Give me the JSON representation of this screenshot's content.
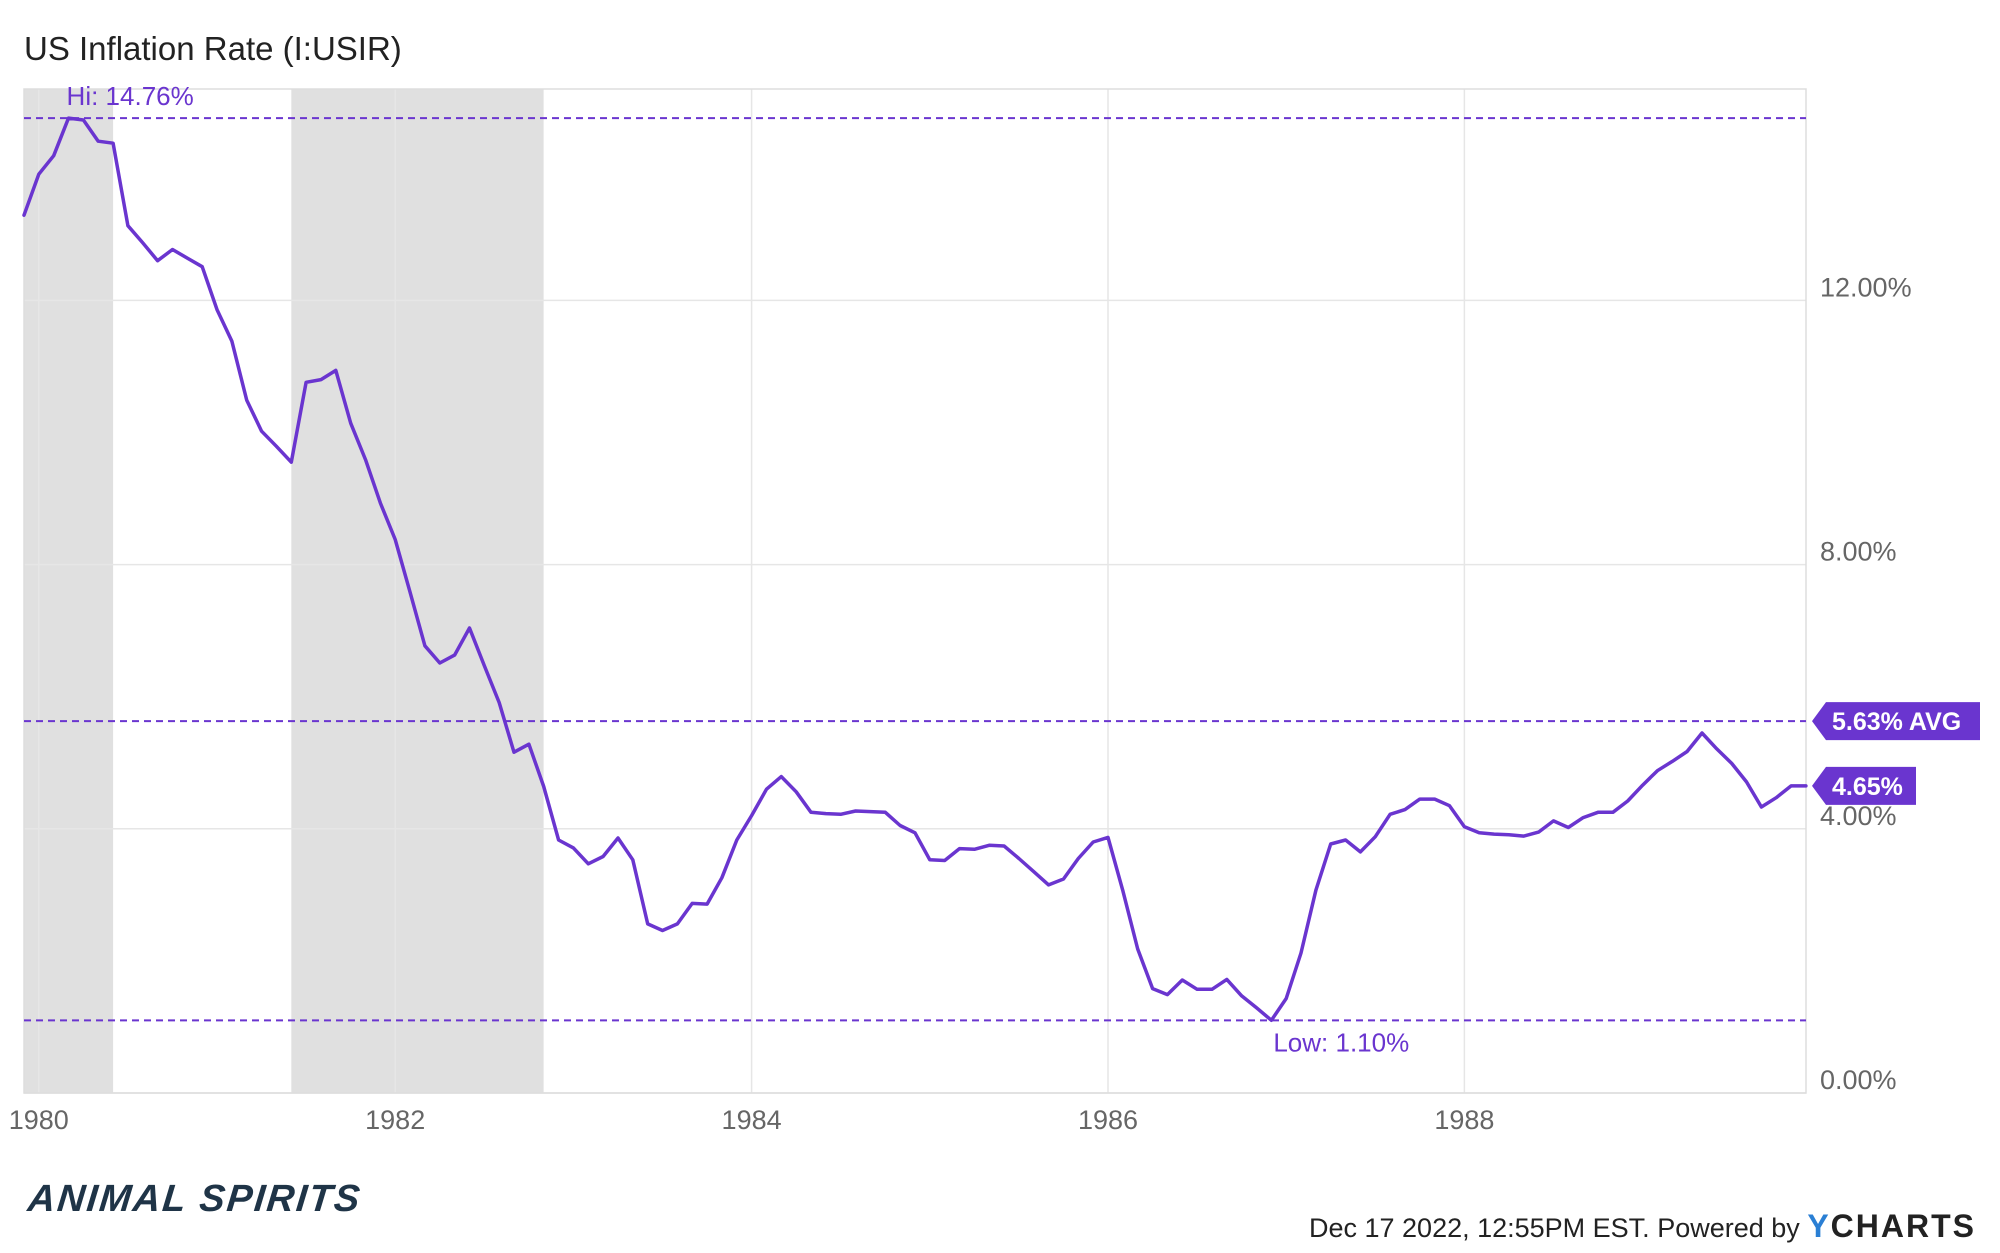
{
  "title": "US Inflation Rate (I:USIR)",
  "brand_logo_text": "ANIMAL SPIRITS",
  "footer": {
    "timestamp": "Dec 17 2022, 12:55PM EST.",
    "powered_by": "Powered by",
    "ycharts_first": "Y",
    "ycharts_rest": "CHARTS"
  },
  "colors": {
    "series": "#6a35cf",
    "recession": "#e0e0e0",
    "grid": "#e6e6e6",
    "tick_text": "#666666"
  },
  "chart_data": {
    "type": "line",
    "title": "US Inflation Rate (I:USIR)",
    "x_start": 1979.917,
    "x_end": 1989.917,
    "ylim": [
      0,
      15.2
    ],
    "y_ticks": [
      {
        "value": 0,
        "label": "0.00%"
      },
      {
        "value": 4,
        "label": "4.00%"
      },
      {
        "value": 8,
        "label": "8.00%"
      },
      {
        "value": 12,
        "label": "12.00%"
      }
    ],
    "x_ticks": [
      {
        "value": 1980,
        "label": "1980"
      },
      {
        "value": 1982,
        "label": "1982"
      },
      {
        "value": 1984,
        "label": "1984"
      },
      {
        "value": 1986,
        "label": "1986"
      },
      {
        "value": 1988,
        "label": "1988"
      }
    ],
    "grid": true,
    "recessions": [
      {
        "start": 1979.917,
        "end": 1980.417
      },
      {
        "start": 1981.417,
        "end": 1982.833
      }
    ],
    "reference_lines": [
      {
        "kind": "high",
        "value": 14.76,
        "label": "Hi: 14.76%"
      },
      {
        "kind": "average",
        "value": 5.63,
        "label": "5.63% AVG"
      },
      {
        "kind": "low",
        "value": 1.1,
        "label": "Low: 1.10%"
      }
    ],
    "latest": {
      "value": 4.65,
      "label": "4.65%"
    },
    "series": [
      {
        "start": 1979.917,
        "step": 0.08333,
        "values": [
          13.29,
          13.91,
          14.19,
          14.76,
          14.73,
          14.41,
          14.38,
          13.13,
          12.87,
          12.6,
          12.77,
          12.64,
          12.51,
          11.86,
          11.38,
          10.49,
          10.02,
          9.79,
          9.55,
          10.76,
          10.8,
          10.94,
          10.14,
          9.59,
          8.93,
          8.38,
          7.58,
          6.77,
          6.51,
          6.63,
          7.04,
          6.47,
          5.91,
          5.16,
          5.28,
          4.64,
          3.83,
          3.71,
          3.47,
          3.58,
          3.86,
          3.53,
          2.56,
          2.46,
          2.56,
          2.87,
          2.86,
          3.26,
          3.83,
          4.2,
          4.6,
          4.79,
          4.56,
          4.25,
          4.23,
          4.22,
          4.27,
          4.26,
          4.25,
          4.05,
          3.94,
          3.53,
          3.52,
          3.7,
          3.69,
          3.75,
          3.74,
          3.55,
          3.35,
          3.15,
          3.24,
          3.55,
          3.8,
          3.87,
          3.06,
          2.18,
          1.58,
          1.49,
          1.71,
          1.57,
          1.57,
          1.72,
          1.47,
          1.29,
          1.1,
          1.43,
          2.12,
          3.07,
          3.77,
          3.83,
          3.65,
          3.88,
          4.22,
          4.29,
          4.45,
          4.45,
          4.35,
          4.03,
          3.94,
          3.92,
          3.91,
          3.89,
          3.95,
          4.12,
          4.02,
          4.17,
          4.25,
          4.25,
          4.42,
          4.66,
          4.88,
          5.02,
          5.17,
          5.45,
          5.21,
          4.99,
          4.71,
          4.33,
          4.47,
          4.65,
          4.65
        ]
      }
    ]
  }
}
